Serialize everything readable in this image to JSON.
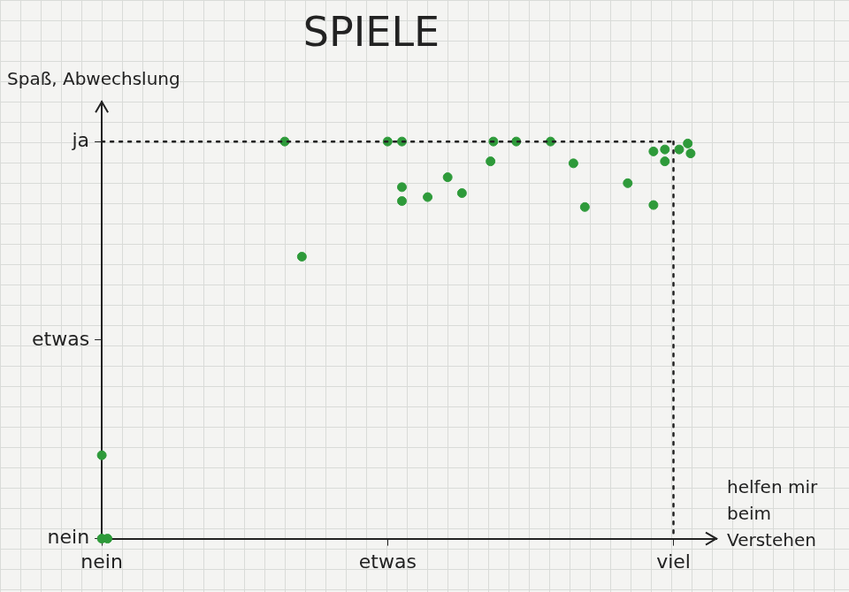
{
  "chart_data": {
    "type": "scatter",
    "title": "SPIELE",
    "x_label": "helfen mir beim Verstehen",
    "y_label": "Spaß, Abwechslung",
    "x": [
      0.64,
      0.7,
      1.0,
      1.05,
      1.05,
      1.05,
      1.14,
      1.21,
      1.26,
      1.36,
      1.37,
      1.45,
      1.57,
      1.65,
      1.69,
      1.84,
      1.93,
      1.93,
      1.97,
      1.97,
      2.02,
      2.05,
      2.06,
      0.0,
      0.0,
      0.02
    ],
    "values": [
      2.0,
      1.42,
      2.0,
      2.0,
      1.77,
      1.7,
      1.72,
      1.82,
      1.74,
      1.9,
      2.0,
      2.0,
      2.0,
      1.89,
      1.67,
      1.79,
      1.68,
      1.95,
      1.96,
      1.9,
      1.96,
      1.99,
      1.94,
      0.42,
      0.0,
      0.0
    ],
    "color": "#2e9a3a",
    "marker": "circle",
    "xlim": [
      0,
      2.15
    ],
    "ylim": [
      0,
      2.2
    ],
    "xticks": [
      {
        "value": 0,
        "label": "nein"
      },
      {
        "value": 1,
        "label": "etwas"
      },
      {
        "value": 2,
        "label": "viel"
      }
    ],
    "yticks": [
      {
        "value": 0,
        "label": "nein"
      },
      {
        "value": 1,
        "label": "etwas"
      },
      {
        "value": 2,
        "label": "ja"
      }
    ],
    "grid": false
  }
}
